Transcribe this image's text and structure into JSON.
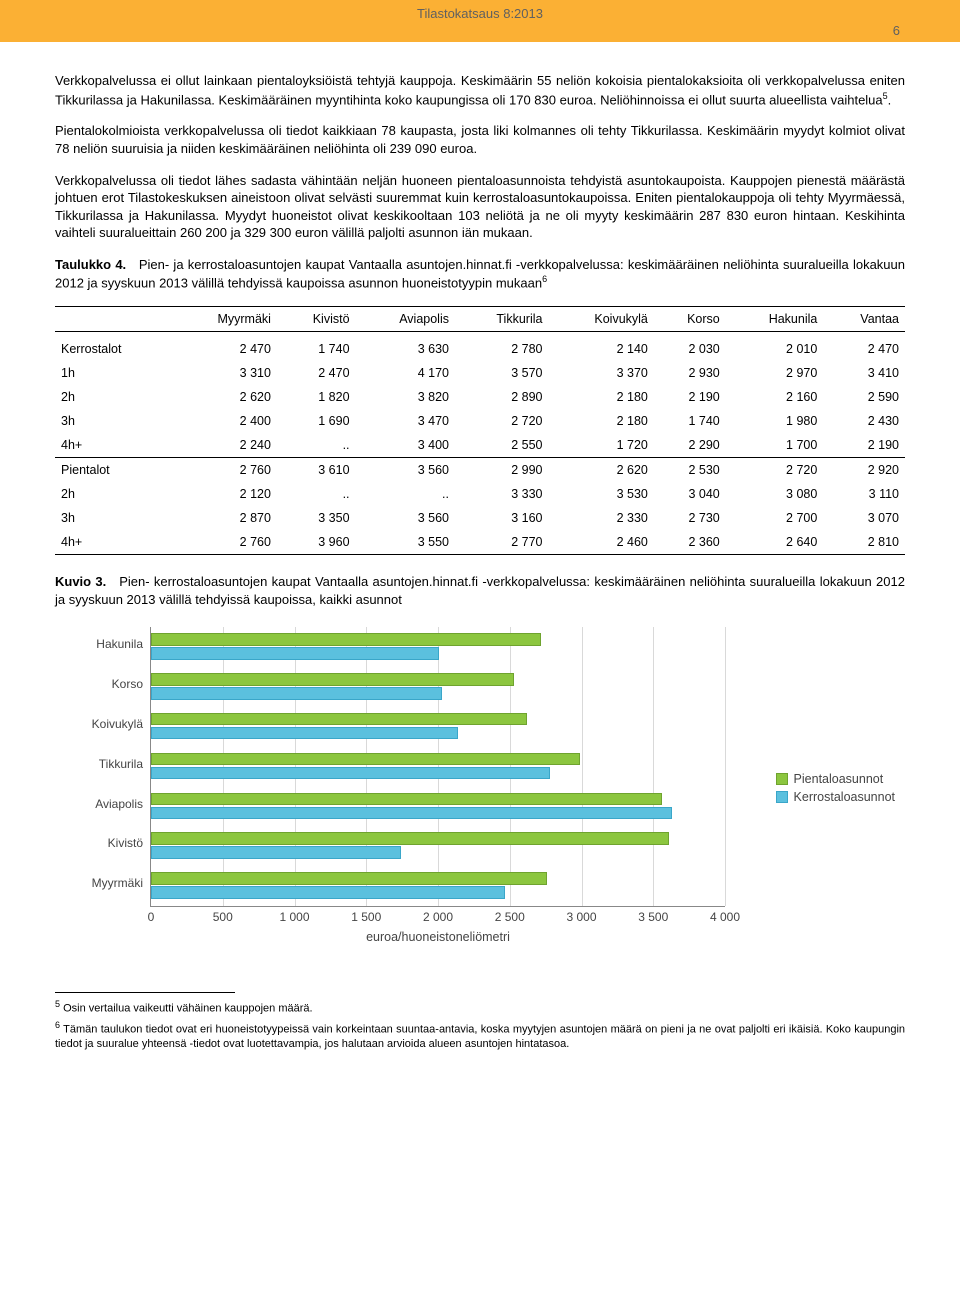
{
  "header": {
    "title": "Tilastokatsaus 8:2013",
    "page_number": "6"
  },
  "paragraphs": {
    "p1": "Verkkopalvelussa ei ollut lainkaan pientaloyksiöistä tehtyjä kauppoja. Keskimäärin 55 neliön kokoisia pientalokaksioita oli verkkopalvelussa eniten Tikkurilassa ja Hakunilassa. Keskimääräinen myyntihinta koko kaupungissa oli 170 830 euroa. Neliöhinnoissa ei ollut suurta alueellista vaihtelua",
    "p2": "Pientalokolmioista verkkopalvelussa oli tiedot kaikkiaan 78 kaupasta, josta liki kolmannes oli tehty Tikkurilassa. Keskimäärin myydyt kolmiot olivat 78 neliön suuruisia ja niiden keskimääräinen neliöhinta oli 239 090 euroa.",
    "p3": "Verkkopalvelussa oli tiedot lähes sadasta vähintään neljän huoneen pientaloasunnoista tehdyistä asuntokaupoista. Kauppojen pienestä määrästä johtuen erot Tilastokeskuksen aineistoon olivat selvästi suuremmat kuin kerrostaloasuntokaupoissa. Eniten pientalokauppoja oli tehty Myyrmäessä, Tikkurilassa ja Hakunilassa. Myydyt huoneistot olivat keskikooltaan 103 neliötä ja ne oli myyty keskimäärin 287 830 euron hintaan. Keskihinta vaihteli suuralueittain 260 200 ja 329 300 euron välillä paljolti asunnon iän mukaan.",
    "table_caption_label": "Taulukko 4.",
    "table_caption_text": "Pien- ja kerrostaloasuntojen kaupat Vantaalla asuntojen.hinnat.fi -verkkopalvelussa: keskimääräinen neliöhinta suuralueilla lokakuun 2012 ja syyskuun 2013 välillä tehdyissä kaupoissa asunnon huoneistotyypin mukaan",
    "fig_caption_label": "Kuvio 3.",
    "fig_caption_text": "Pien- kerrostaloasuntojen kaupat Vantaalla asuntojen.hinnat.fi -verkkopalvelussa: keskimääräinen neliöhinta suuralueilla lokakuun 2012 ja syyskuun 2013 välillä tehdyissä kaupoissa, kaikki asunnot"
  },
  "table": {
    "columns": [
      "",
      "Myyrmäki",
      "Kivistö",
      "Aviapolis",
      "Tikkurila",
      "Koivukylä",
      "Korso",
      "Hakunila",
      "Vantaa"
    ],
    "section1_label": "Kerrostalot",
    "section1": [
      [
        "Kerrostalot",
        "2 470",
        "1 740",
        "3 630",
        "2 780",
        "2 140",
        "2 030",
        "2 010",
        "2 470"
      ],
      [
        "1h",
        "3 310",
        "2 470",
        "4 170",
        "3 570",
        "3 370",
        "2 930",
        "2 970",
        "3 410"
      ],
      [
        "2h",
        "2 620",
        "1 820",
        "3 820",
        "2 890",
        "2 180",
        "2 190",
        "2 160",
        "2 590"
      ],
      [
        "3h",
        "2 400",
        "1 690",
        "3 470",
        "2 720",
        "2 180",
        "1 740",
        "1 980",
        "2 430"
      ],
      [
        "4h+",
        "2 240",
        "..",
        "3 400",
        "2 550",
        "1 720",
        "2 290",
        "1 700",
        "2 190"
      ]
    ],
    "section2": [
      [
        "Pientalot",
        "2 760",
        "3 610",
        "3 560",
        "2 990",
        "2 620",
        "2 530",
        "2 720",
        "2 920"
      ],
      [
        "2h",
        "2 120",
        "..",
        "..",
        "3 330",
        "3 530",
        "3 040",
        "3 080",
        "3 110"
      ],
      [
        "3h",
        "2 870",
        "3 350",
        "3 560",
        "3 160",
        "2 330",
        "2 730",
        "2 700",
        "3 070"
      ],
      [
        "4h+",
        "2 760",
        "3 960",
        "3 550",
        "2 770",
        "2 460",
        "2 360",
        "2 640",
        "2 810"
      ]
    ]
  },
  "chart": {
    "type": "bar-horizontal-grouped",
    "categories": [
      "Hakunila",
      "Korso",
      "Koivukylä",
      "Tikkurila",
      "Aviapolis",
      "Kivistö",
      "Myyrmäki"
    ],
    "series": {
      "Pientaloasunnot": [
        2720,
        2530,
        2620,
        2990,
        3560,
        3610,
        2760
      ],
      "Kerrostaloasunnot": [
        2010,
        2030,
        2140,
        2780,
        3630,
        1740,
        2470
      ]
    },
    "xmax": 4000,
    "xtick_step": 500,
    "xticks": [
      "0",
      "500",
      "1 000",
      "1 500",
      "2 000",
      "2 500",
      "3 000",
      "3 500",
      "4 000"
    ],
    "x_title": "euroa/huoneistoneliömetri",
    "legend": [
      "Pientaloasunnot",
      "Kerrostaloasunnot"
    ],
    "colors": {
      "pien": "#8cc63f",
      "kerr": "#5bc0de"
    },
    "grid_color": "#d9d9d9",
    "background": "#ffffff"
  },
  "footnotes": {
    "f5_num": "5",
    "f5": "Osin vertailua vaikeutti vähäinen kauppojen määrä.",
    "f6_num": "6",
    "f6": "Tämän taulukon tiedot ovat eri huoneistotyypeissä vain korkeintaan suuntaa-antavia, koska myytyjen asuntojen määrä on pieni ja ne ovat paljolti eri ikäisiä. Koko kaupungin tiedot ja suuralue yhteensä -tiedot ovat luotettavampia, jos halutaan arvioida alueen asuntojen hintatasoa."
  }
}
